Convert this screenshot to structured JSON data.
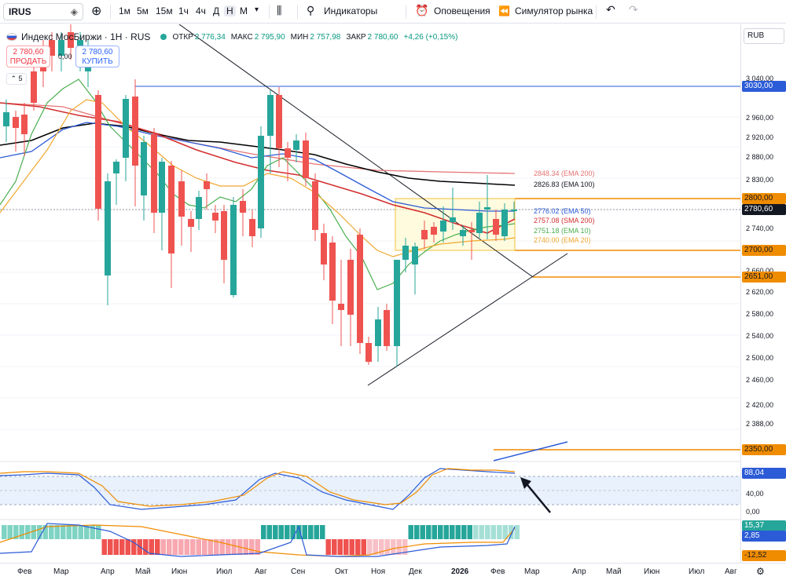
{
  "toolbar": {
    "symbol": "IRUS",
    "intervals": [
      "1м",
      "5м",
      "15м",
      "1ч",
      "4ч",
      "Д",
      "Н",
      "М"
    ],
    "active_interval": "Н",
    "indicators_label": "Индикаторы",
    "alerts_label": "Оповещения",
    "simulator_label": "Симулятор рынка"
  },
  "legend": {
    "title": "Индекс МосБиржи · 1H · RUS",
    "open_label": "ОТКР",
    "open": "2 776,34",
    "high_label": "МАКС",
    "high": "2 795,90",
    "low_label": "МИН",
    "low": "2 757,98",
    "close_label": "ЗАКР",
    "close": "2 780,60",
    "change": "+4,26 (+0,15%)"
  },
  "trade": {
    "sell_price": "2 780,60",
    "sell_label": "ПРОДАТЬ",
    "buy_price": "2 780,60",
    "buy_label": "КУПИТЬ",
    "spread": "0,00",
    "collapse": "5"
  },
  "currency": "RUB",
  "price_axis": {
    "ticks": [
      "3 040,00",
      "2 960,00",
      "2 920,00",
      "2 880,00",
      "2 830,00",
      "2 740,00",
      "2 660,00",
      "2 620,00",
      "2 580,00",
      "2 540,00",
      "2 500,00",
      "2 460,00",
      "2 420,00",
      "2 388,00",
      "40,00",
      "0,00"
    ],
    "tags": {
      "level_3030": "3030,00",
      "level_2800": "2800,00",
      "current": "2780,60",
      "level_2700": "2700,00",
      "level_2651": "2651,00",
      "level_2350": "2350,00",
      "stoch": "88,04",
      "osc_top": "15,37",
      "osc_mid": "2,85",
      "osc_bottom": "-12,52"
    }
  },
  "ema_labels": {
    "ema200": "2848.34 (EMA 200)",
    "ema100": "2826.83 (EMA 100)",
    "ema50": "2776.02 (EMA 50)",
    "sma200": "2757.08 (SMA 200)",
    "ema10": "2751.18 (EMA 10)",
    "ema20": "2740.00 (EMA 20)"
  },
  "time_axis": [
    "Фев",
    "Мар",
    "Апр",
    "Май",
    "Июн",
    "Июл",
    "Авг",
    "Сен",
    "Окт",
    "Ноя",
    "Дек",
    "2026",
    "Фев",
    "Мар",
    "Апр",
    "Май",
    "Июн",
    "Июл",
    "Авг"
  ],
  "colors": {
    "up": "#26a69a",
    "down": "#ef5350",
    "ema200": "#e57373",
    "ema100": "#000000",
    "ema50": "#2b5bd7",
    "sma200": "#d32f2f",
    "ema10": "#4caf50",
    "ema20": "#f0a830",
    "orange_level": "#f08c00",
    "blue_level": "#2b5bd7"
  }
}
